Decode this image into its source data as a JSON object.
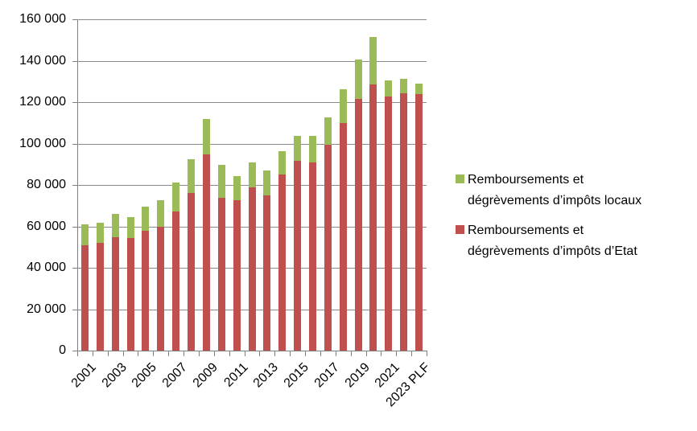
{
  "chart_data": {
    "type": "bar",
    "stacked": true,
    "title": "",
    "categories": [
      "2001",
      "2002",
      "2003",
      "2004",
      "2005",
      "2006",
      "2007",
      "2008",
      "2009",
      "2010",
      "2011",
      "2012",
      "2013",
      "2014",
      "2015",
      "2016",
      "2017",
      "2018",
      "2019",
      "2020",
      "2021",
      "2022",
      "2023 PLF"
    ],
    "series": [
      {
        "name": "Remboursements et dégrèvements d’impôts d’Etat",
        "color": "#c0504d",
        "values": [
          50800,
          51900,
          54900,
          54200,
          57800,
          59700,
          67300,
          76200,
          94600,
          73900,
          72800,
          78800,
          75000,
          84900,
          91800,
          90700,
          99500,
          109900,
          121500,
          128400,
          122800,
          124400,
          124000
        ]
      },
      {
        "name": "Remboursements et dégrèvements d’impôts locaux",
        "color": "#9bbb59",
        "values": [
          10300,
          9900,
          11300,
          10400,
          11900,
          12900,
          13700,
          16100,
          17200,
          16000,
          11600,
          12100,
          11900,
          11600,
          11900,
          13000,
          13200,
          16400,
          18900,
          23200,
          7800,
          6800,
          4900
        ]
      }
    ],
    "totals": [
      61100,
      61800,
      66200,
      64600,
      69700,
      72600,
      81000,
      92300,
      111800,
      89900,
      84400,
      90900,
      86900,
      96500,
      103700,
      103700,
      112700,
      126300,
      140400,
      151600,
      130600,
      131200,
      128900
    ],
    "y_axis": {
      "min": 0,
      "max": 160000,
      "step": 20000,
      "tick_values": [
        0,
        20000,
        40000,
        60000,
        80000,
        100000,
        120000,
        140000,
        160000
      ],
      "tick_labels": [
        "0",
        "20 000",
        "40 000",
        "60 000",
        "80 000",
        "100 000",
        "120 000",
        "140 000",
        "160 000"
      ]
    },
    "x_axis": {
      "tick_every": 2,
      "tick_labels": [
        "2001",
        "2003",
        "2005",
        "2007",
        "2009",
        "2011",
        "2013",
        "2015",
        "2017",
        "2019",
        "2021",
        "2023 PLF"
      ]
    },
    "grid": true,
    "legend_position": "right",
    "colors": {
      "gridline": "#8a8a8a",
      "axis": "#7f7f7f",
      "text": "#000000",
      "background": "#ffffff"
    }
  },
  "legend": {
    "items": [
      {
        "id": "locaux",
        "color": "#9bbb59",
        "lines": [
          "Remboursements et",
          "dégrèvements d’impôts locaux"
        ]
      },
      {
        "id": "etat",
        "color": "#c0504d",
        "lines": [
          "Remboursements et",
          "dégrèvements d’impôts d’Etat"
        ]
      }
    ]
  }
}
